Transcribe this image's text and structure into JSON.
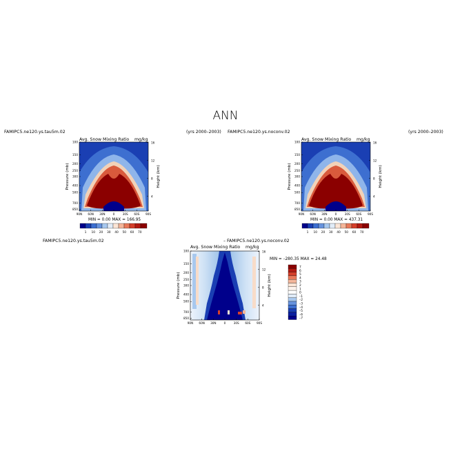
{
  "page_title": "ANN",
  "colors": {
    "dark_blue": "#00008b",
    "dark_red": "#8b0000",
    "background": "#ffffff"
  },
  "panels": {
    "top_left": {
      "case_name": "FAMIPC5.ne120.ys.tau5m.02",
      "years": "(yrs 2000–2003)",
      "field": "Avg. Snow Mixing Ratio",
      "units": "mg/kg",
      "stats": "MIN =    0.00   MAX = 166.95"
    },
    "top_right": {
      "case_name": "FAMIPC5.ne120.ys.noconv.02",
      "years": "(yrs 2000–2003)",
      "field": "Avg. Snow Mixing Ratio",
      "units": "mg/kg",
      "stats": "MIN =    0.00   MAX = 437.31"
    },
    "bottom": {
      "case_left": "FAMIPC5.ne120.ys.tau5m.02",
      "case_right": "– FAMIPC5.ne120.ys.noconv.02",
      "field": "Avg. Snow Mixing Ratio",
      "units": "mg/kg",
      "stats": "MIN = –280.35   MAX =  24.48"
    }
  },
  "chart_data": [
    {
      "type": "heatmap",
      "panel": "top_left",
      "title": "Avg. Snow Mixing Ratio",
      "units": "mg/kg",
      "xlabel": "",
      "ylabel": "Pressure (mb)",
      "ylabel_right": "Height (km)",
      "x_ticks": [
        "90N",
        "60N",
        "30N",
        "0",
        "30S",
        "60S",
        "90S"
      ],
      "y_ticks": [
        "100",
        "150",
        "200",
        "250",
        "300",
        "400",
        "500",
        "700",
        "850"
      ],
      "y_ticks_right": [
        "16",
        "12",
        "8",
        "4"
      ],
      "colorbar_ticks": [
        "1",
        "10",
        "20",
        "30",
        "40",
        "50",
        "60",
        "70"
      ],
      "min": 0.0,
      "max": 166.95
    },
    {
      "type": "heatmap",
      "panel": "top_right",
      "title": "Avg. Snow Mixing Ratio",
      "units": "mg/kg",
      "xlabel": "",
      "ylabel": "Pressure (mb)",
      "ylabel_right": "Height (km)",
      "x_ticks": [
        "90N",
        "60N",
        "30N",
        "0",
        "30S",
        "60S",
        "90S"
      ],
      "y_ticks": [
        "100",
        "150",
        "200",
        "250",
        "300",
        "400",
        "500",
        "700",
        "850"
      ],
      "y_ticks_right": [
        "16",
        "12",
        "8",
        "4"
      ],
      "colorbar_ticks": [
        "1",
        "10",
        "20",
        "30",
        "40",
        "50",
        "60",
        "70"
      ],
      "min": 0.0,
      "max": 437.31
    },
    {
      "type": "heatmap",
      "panel": "bottom",
      "title": "Avg. Snow Mixing Ratio",
      "units": "mg/kg",
      "xlabel": "",
      "ylabel": "Pressure (mb)",
      "ylabel_right": "Height (km)",
      "x_ticks": [
        "90N",
        "60N",
        "30N",
        "0",
        "30S",
        "60S",
        "90S"
      ],
      "y_ticks": [
        "100",
        "150",
        "200",
        "250",
        "300",
        "400",
        "500",
        "700",
        "850"
      ],
      "y_ticks_right": [
        "16",
        "12",
        "8",
        "4"
      ],
      "colorbar_ticks": [
        "7",
        "6",
        "5",
        "4",
        "3",
        "2",
        "1",
        "0",
        "–1",
        "–2",
        "–3",
        "–4",
        "–5",
        "–6",
        "–7"
      ],
      "min": -280.35,
      "max": 24.48
    }
  ]
}
